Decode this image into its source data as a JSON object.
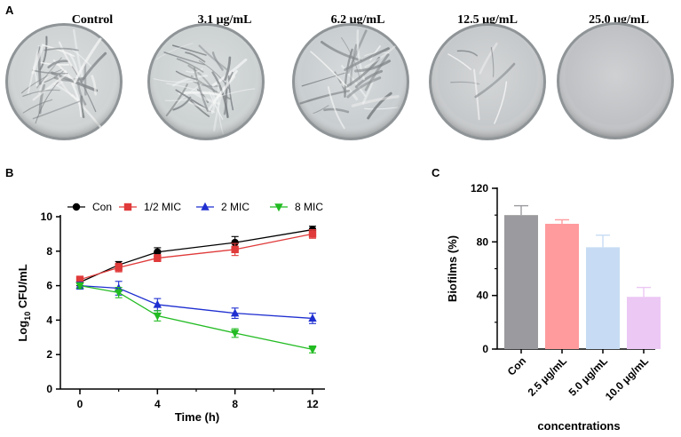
{
  "panels": {
    "a": "A",
    "b": "B",
    "c": "C"
  },
  "plates": [
    {
      "label": "Control",
      "tone": "#cfd3d4",
      "streaks": "heavy"
    },
    {
      "label": "3.1 μg/mL",
      "tone": "#cdd2d3",
      "streaks": "heavy"
    },
    {
      "label": "6.2 μg/mL",
      "tone": "#c9ced0",
      "streaks": "medium"
    },
    {
      "label": "12.5 μg/mL",
      "tone": "#c6c9cb",
      "streaks": "light"
    },
    {
      "label": "25.0 μg/mL",
      "tone": "#bfc1c4",
      "streaks": "none"
    }
  ],
  "chart_data": [
    {
      "type": "line",
      "xlabel": "Time (h)",
      "ylabel_main": "Log",
      "ylabel_sub": "10",
      "ylabel_rest": " CFU/mL",
      "x": [
        0,
        2,
        4,
        8,
        12
      ],
      "xticks": [
        "0",
        "4",
        "8",
        "12"
      ],
      "yticks": [
        "0",
        "2",
        "4",
        "6",
        "8",
        "10"
      ],
      "xlim": [
        0,
        12
      ],
      "ylim": [
        0,
        10
      ],
      "legend_position": "top",
      "series": [
        {
          "name": "Con",
          "color": "#000000",
          "marker": "circle",
          "values": [
            6.2,
            7.2,
            7.95,
            8.5,
            9.25
          ],
          "errors": [
            0.2,
            0.2,
            0.25,
            0.35,
            0.2
          ]
        },
        {
          "name": "1/2 MIC",
          "color": "#e03a3a",
          "marker": "square",
          "values": [
            6.35,
            7.05,
            7.6,
            8.1,
            9.0
          ],
          "errors": [
            0.2,
            0.25,
            0.2,
            0.35,
            0.25
          ]
        },
        {
          "name": "2 MIC",
          "color": "#1f2fd0",
          "marker": "triangle-up",
          "values": [
            6.0,
            5.85,
            4.9,
            4.4,
            4.1
          ],
          "errors": [
            0.2,
            0.4,
            0.35,
            0.3,
            0.3
          ]
        },
        {
          "name": "8 MIC",
          "color": "#22bb22",
          "marker": "triangle-down",
          "values": [
            6.0,
            5.6,
            4.25,
            3.25,
            2.3
          ],
          "errors": [
            0.15,
            0.3,
            0.3,
            0.25,
            0.2
          ]
        }
      ]
    },
    {
      "type": "bar",
      "xlabel": "concentrations",
      "ylabel": "Biofilms (%)",
      "categories": [
        "Con",
        "2.5 μg/mL",
        "5.0 μg/mL",
        "10.0 μg/mL"
      ],
      "values": [
        100,
        93.5,
        76,
        39
      ],
      "errors": [
        7,
        3,
        9,
        7
      ],
      "colors": [
        "#9b9b9f",
        "#ff9b9d",
        "#c7dcf4",
        "#ecc8f4"
      ],
      "yticks": [
        "0",
        "40",
        "80",
        "120"
      ],
      "ylim": [
        0,
        120
      ]
    }
  ]
}
